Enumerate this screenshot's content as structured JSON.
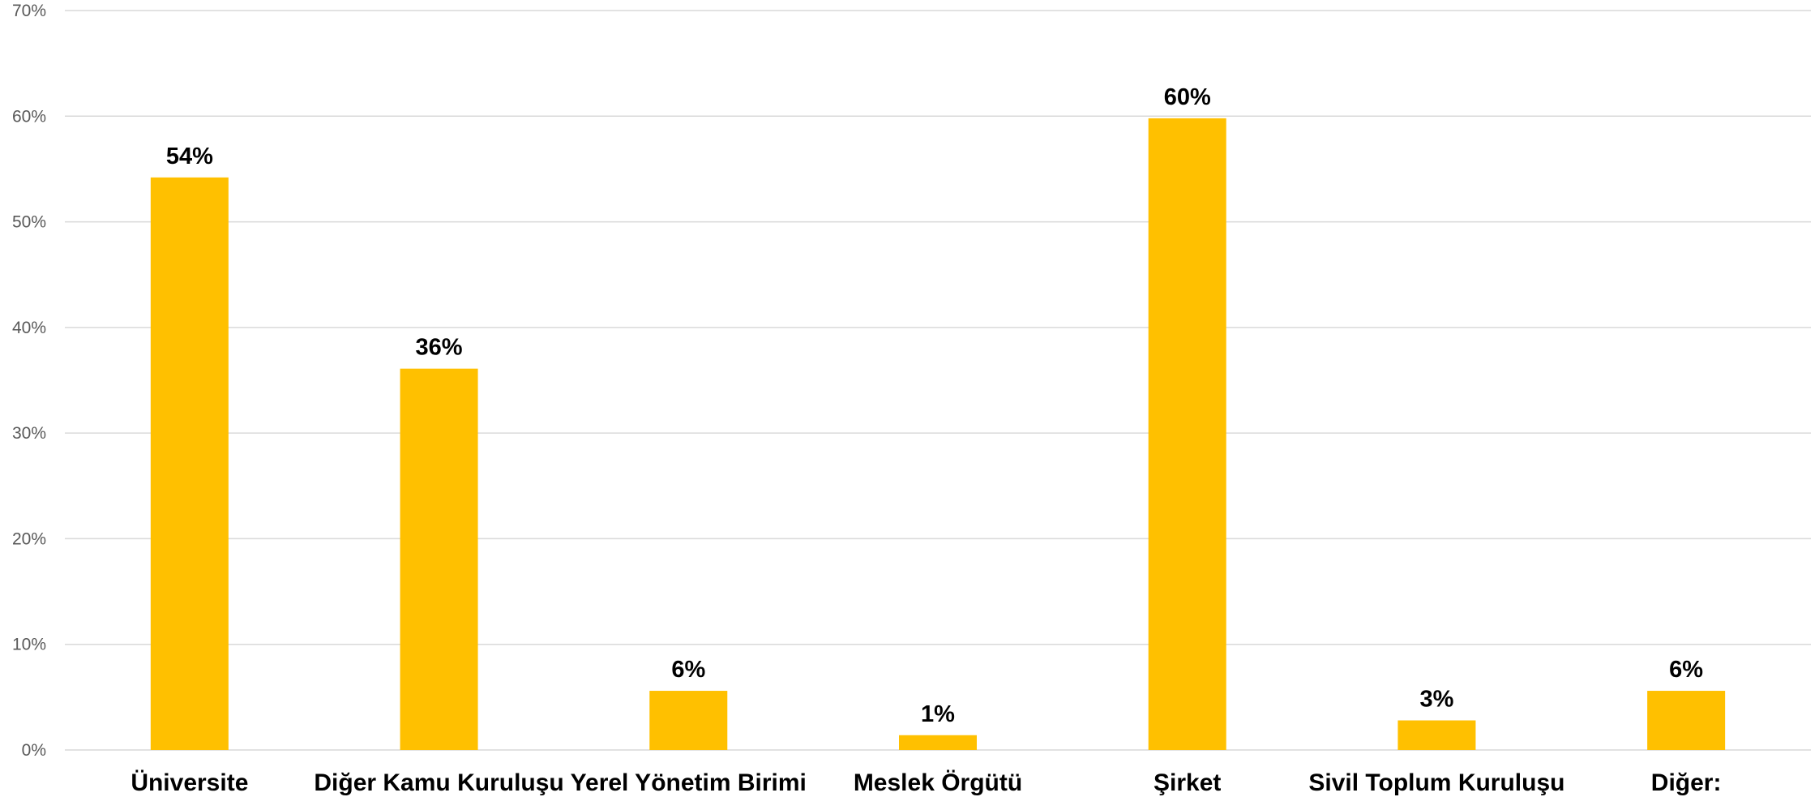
{
  "chart_data": {
    "type": "bar",
    "categories": [
      "Üniversite",
      "Diğer Kamu Kuruluşu",
      "Yerel Yönetim Birimi",
      "Meslek Örgütü",
      "Şirket",
      "Sivil Toplum Kuruluşu",
      "Diğer:"
    ],
    "values": [
      54.2,
      36.1,
      5.6,
      1.4,
      59.8,
      2.8,
      5.6
    ],
    "data_labels": [
      "54%",
      "36%",
      "6%",
      "1%",
      "60%",
      "3%",
      "6%"
    ],
    "yticks": [
      0,
      10,
      20,
      30,
      40,
      50,
      60,
      70
    ],
    "ytick_labels": [
      "0%",
      "10%",
      "20%",
      "30%",
      "40%",
      "50%",
      "60%",
      "70%"
    ],
    "ylim": [
      0,
      70
    ],
    "grid": true,
    "legend": "none",
    "bar_color": "#FFC000",
    "grid_color": "#D9D9D9"
  }
}
